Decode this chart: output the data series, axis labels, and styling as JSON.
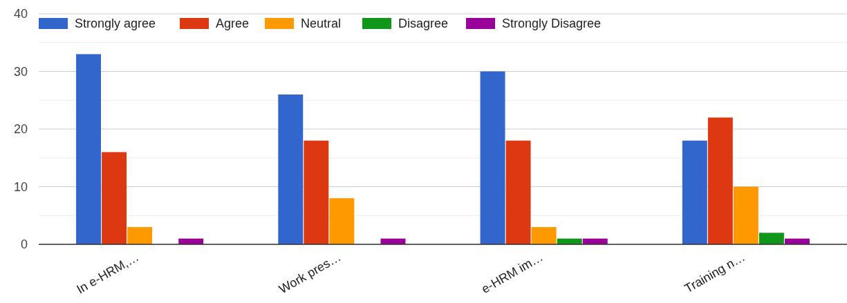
{
  "chart_data": {
    "type": "bar",
    "categories": [
      "In e-HRM,…",
      "Work pres…",
      "e-HRM im…",
      "Training n…"
    ],
    "series": [
      {
        "name": "Strongly agree",
        "color": "#3366cc",
        "values": [
          33,
          26,
          30,
          18
        ]
      },
      {
        "name": "Agree",
        "color": "#dc3912",
        "values": [
          16,
          18,
          18,
          22
        ]
      },
      {
        "name": "Neutral",
        "color": "#ff9900",
        "values": [
          3,
          8,
          3,
          10
        ]
      },
      {
        "name": "Disagree",
        "color": "#109618",
        "values": [
          0,
          0,
          1,
          2
        ]
      },
      {
        "name": "Strongly Disagree",
        "color": "#990099",
        "values": [
          1,
          1,
          1,
          1
        ]
      }
    ],
    "ylim": [
      0,
      40
    ],
    "yticks": [
      0,
      {
        "value": 5,
        "label": null
      },
      10,
      {
        "value": 15,
        "label": null
      },
      20,
      {
        "value": 25,
        "label": null
      },
      30,
      {
        "value": 35,
        "label": null
      },
      40
    ],
    "grid": true,
    "legend": "top"
  }
}
